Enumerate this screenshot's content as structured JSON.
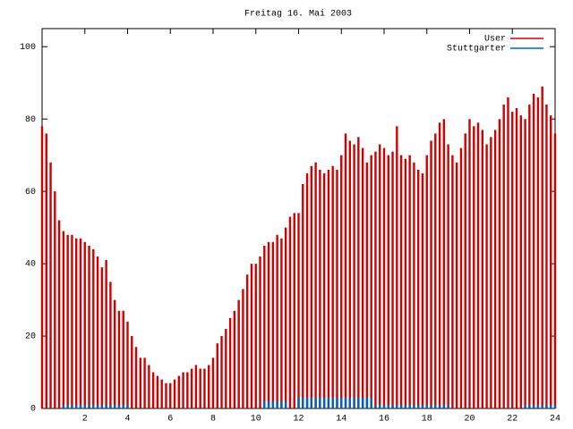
{
  "chart_data": {
    "type": "impulse",
    "title": "Freitag 16. Mai 2003",
    "x": [
      0,
      0.2,
      0.4,
      0.6,
      0.8,
      1,
      1.2,
      1.4,
      1.6,
      1.8,
      2,
      2.2,
      2.4,
      2.6,
      2.8,
      3,
      3.2,
      3.4,
      3.6,
      3.8,
      4,
      4.2,
      4.4,
      4.6,
      4.8,
      5,
      5.2,
      5.4,
      5.6,
      5.8,
      6,
      6.2,
      6.4,
      6.6,
      6.8,
      7,
      7.2,
      7.4,
      7.6,
      7.8,
      8,
      8.2,
      8.4,
      8.6,
      8.8,
      9,
      9.2,
      9.4,
      9.6,
      9.8,
      10,
      10.2,
      10.4,
      10.6,
      10.8,
      11,
      11.2,
      11.4,
      11.6,
      11.8,
      12,
      12.2,
      12.4,
      12.6,
      12.8,
      13,
      13.2,
      13.4,
      13.6,
      13.8,
      14,
      14.2,
      14.4,
      14.6,
      14.8,
      15,
      15.2,
      15.4,
      15.6,
      15.8,
      16,
      16.2,
      16.4,
      16.6,
      16.8,
      17,
      17.2,
      17.4,
      17.6,
      17.8,
      18,
      18.2,
      18.4,
      18.6,
      18.8,
      19,
      19.2,
      19.4,
      19.6,
      19.8,
      20,
      20.2,
      20.4,
      20.6,
      20.8,
      21,
      21.2,
      21.4,
      21.6,
      21.8,
      22,
      22.2,
      22.4,
      22.6,
      22.8,
      23,
      23.2,
      23.4,
      23.6,
      23.8,
      24
    ],
    "series": [
      {
        "name": "User",
        "color": "#d00000",
        "values": [
          78,
          76,
          68,
          60,
          52,
          49,
          48,
          48,
          47,
          47,
          46,
          45,
          44,
          42,
          39,
          41,
          35,
          30,
          27,
          27,
          24,
          20,
          17,
          14,
          14,
          12,
          10,
          9,
          8,
          7,
          7,
          8,
          9,
          10,
          10,
          11,
          12,
          11,
          11,
          12,
          14,
          18,
          20,
          22,
          25,
          27,
          30,
          33,
          37,
          40,
          40,
          42,
          45,
          46,
          46,
          48,
          47,
          50,
          53,
          54,
          54,
          62,
          65,
          67,
          68,
          66,
          65,
          66,
          67,
          66,
          70,
          76,
          74,
          73,
          75,
          72,
          68,
          70,
          71,
          73,
          72,
          70,
          71,
          78,
          70,
          69,
          70,
          68,
          66,
          65,
          70,
          74,
          76,
          79,
          80,
          73,
          70,
          68,
          72,
          76,
          80,
          78,
          79,
          77,
          73,
          75,
          77,
          80,
          84,
          86,
          82,
          83,
          81,
          80,
          84,
          87,
          86,
          89,
          84,
          81,
          76
        ]
      },
      {
        "name": "Stuttgarter",
        "color": "#0060c0",
        "values": [
          0,
          0,
          0,
          0,
          0,
          1,
          1,
          1,
          1,
          1,
          1,
          1,
          1,
          1,
          1,
          1,
          1,
          1,
          1,
          1,
          1,
          0,
          0,
          0,
          0,
          0,
          0,
          0,
          0,
          0,
          0,
          0,
          0,
          0,
          0,
          0,
          0,
          0,
          0,
          0,
          0,
          0,
          0,
          0,
          0,
          0,
          0,
          0,
          0,
          0,
          0,
          0,
          2,
          2,
          2,
          2,
          2,
          2,
          0,
          0,
          3,
          3,
          3,
          3,
          3,
          3,
          3,
          3,
          3,
          3,
          3,
          3,
          3,
          3,
          3,
          3,
          3,
          3,
          1,
          1,
          1,
          1,
          1,
          1,
          1,
          1,
          1,
          1,
          1,
          1,
          1,
          1,
          1,
          1,
          1,
          1,
          0,
          0,
          0,
          0,
          0,
          0,
          0,
          0,
          0,
          0,
          0,
          0,
          0,
          0,
          0,
          0,
          0,
          1,
          1,
          1,
          1,
          1,
          1,
          1,
          1
        ]
      }
    ],
    "xlim": [
      0,
      24
    ],
    "xticks": [
      2,
      4,
      6,
      8,
      10,
      12,
      14,
      16,
      18,
      20,
      22,
      24
    ],
    "ylim": [
      0,
      105
    ],
    "yticks": [
      0,
      20,
      40,
      60,
      80,
      100
    ],
    "legend": "top right"
  }
}
